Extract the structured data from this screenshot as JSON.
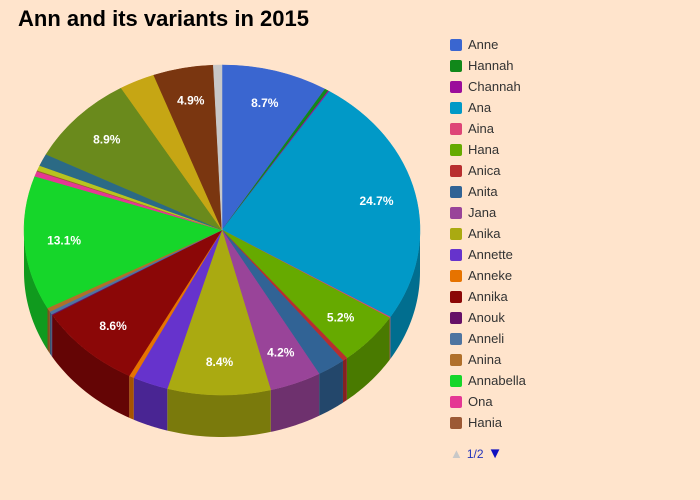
{
  "chart_data": {
    "type": "pie",
    "title": "Ann and its variants in 2015",
    "slices": [
      {
        "name": "Anne",
        "value": 8.7,
        "label": "8.7%",
        "color": "#3a66d0"
      },
      {
        "name": "Hannah",
        "value": 0.3,
        "label": "",
        "color": "#11881a"
      },
      {
        "name": "Channah",
        "value": 0.1,
        "label": "",
        "color": "#9b0d9b"
      },
      {
        "name": "Ana",
        "value": 24.7,
        "label": "24.7%",
        "color": "#0199c7"
      },
      {
        "name": "Aina",
        "value": 0.1,
        "label": "",
        "color": "#de4577"
      },
      {
        "name": "Hana",
        "value": 5.2,
        "label": "5.2%",
        "color": "#66aa00"
      },
      {
        "name": "Anica",
        "value": 0.4,
        "label": "",
        "color": "#b82e2e"
      },
      {
        "name": "Anita",
        "value": 2.3,
        "label": "",
        "color": "#316395"
      },
      {
        "name": "Jana",
        "value": 4.2,
        "label": "4.2%",
        "color": "#994499"
      },
      {
        "name": "Anika",
        "value": 8.4,
        "label": "8.4%",
        "color": "#aaaa11"
      },
      {
        "name": "Annette",
        "value": 2.9,
        "label": "",
        "color": "#6633cc"
      },
      {
        "name": "Anneke",
        "value": 0.4,
        "label": "",
        "color": "#e67300"
      },
      {
        "name": "Annika",
        "value": 8.6,
        "label": "8.6%",
        "color": "#8b0707"
      },
      {
        "name": "Anouk",
        "value": 0.1,
        "label": "",
        "color": "#651067"
      },
      {
        "name": "Anneli",
        "value": 0.3,
        "label": "",
        "color": "#4e74a0"
      },
      {
        "name": "Anina",
        "value": 0.4,
        "label": "",
        "color": "#b06f2a"
      },
      {
        "name": "Annabella",
        "value": 13.1,
        "label": "13.1%",
        "color": "#16d62a"
      },
      {
        "name": "Ona",
        "value": 0.5,
        "label": "",
        "color": "#e53794"
      },
      {
        "name": "Hania",
        "value": 0.1,
        "label": "",
        "color": "#9c5935"
      },
      {
        "name": "",
        "value": 0.5,
        "label": "",
        "color": "#b7c41f"
      },
      {
        "name": "",
        "value": 1.2,
        "label": "",
        "color": "#2b6a85"
      },
      {
        "name": "",
        "value": 8.9,
        "label": "8.9%",
        "color": "#6a8a1c"
      },
      {
        "name": "",
        "value": 2.9,
        "label": "",
        "color": "#c6a614"
      },
      {
        "name": "",
        "value": 4.9,
        "label": "4.9%",
        "color": "#7a3610"
      },
      {
        "name": "",
        "value": 0.7,
        "label": "",
        "color": "#c8c8c8"
      }
    ],
    "legend_placement": "right",
    "label_color": "#ffffff"
  },
  "legend": {
    "page_indicator": "1/2",
    "prev_icon": "triangle-up",
    "next_icon": "triangle-down"
  }
}
